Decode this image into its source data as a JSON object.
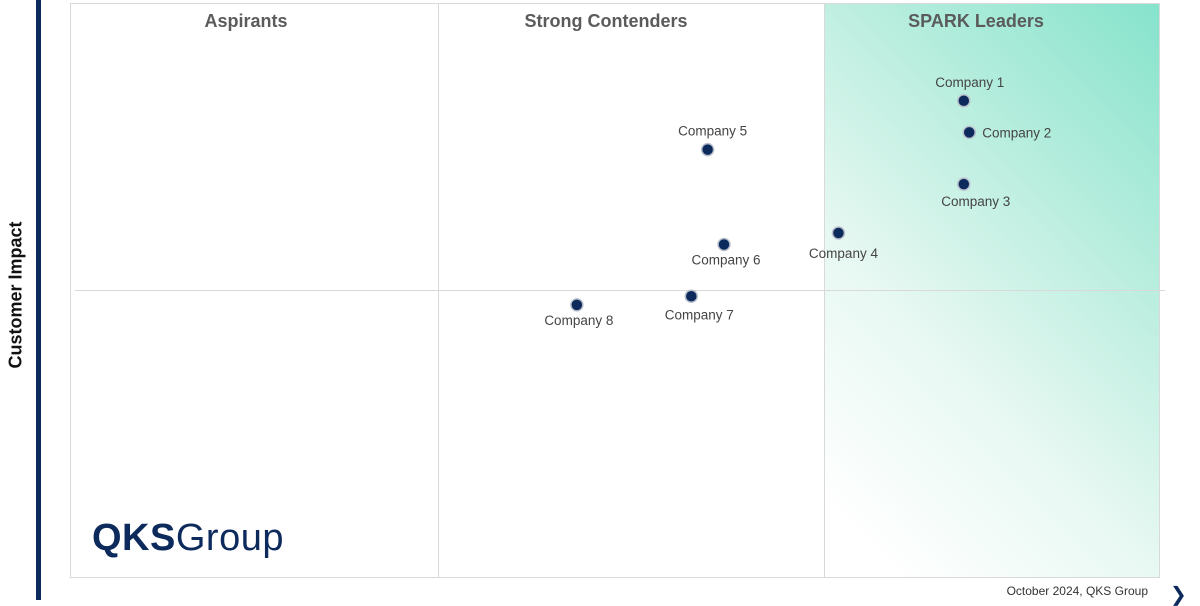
{
  "chart_data": {
    "type": "scatter",
    "ylabel": "Customer Impact",
    "xlabel": "",
    "quadrants": [
      "Aspirants",
      "Strong Contenders",
      "SPARK Leaders"
    ],
    "points": [
      {
        "name": "Company 1",
        "x": 8.2,
        "y": 8.3
      },
      {
        "name": "Company 2",
        "x": 8.25,
        "y": 7.75
      },
      {
        "name": "Company 3",
        "x": 8.2,
        "y": 6.85
      },
      {
        "name": "Company 4",
        "x": 7.05,
        "y": 6.0
      },
      {
        "name": "Company 5",
        "x": 5.85,
        "y": 7.45
      },
      {
        "name": "Company 6",
        "x": 6.0,
        "y": 5.8
      },
      {
        "name": "Company 7",
        "x": 5.7,
        "y": 4.9
      },
      {
        "name": "Company 8",
        "x": 4.65,
        "y": 4.75
      }
    ],
    "xlim": [
      0,
      10
    ],
    "ylim": [
      0,
      10
    ],
    "grid": false,
    "colors": {
      "marker": "#0d2a5c",
      "leader_zone": "#86e3cc"
    }
  },
  "brand": {
    "logo_text": "QKS Group",
    "logo_bold": "QKS",
    "logo_regular": "Group"
  },
  "footer": {
    "note": "October 2024, QKS Group"
  }
}
